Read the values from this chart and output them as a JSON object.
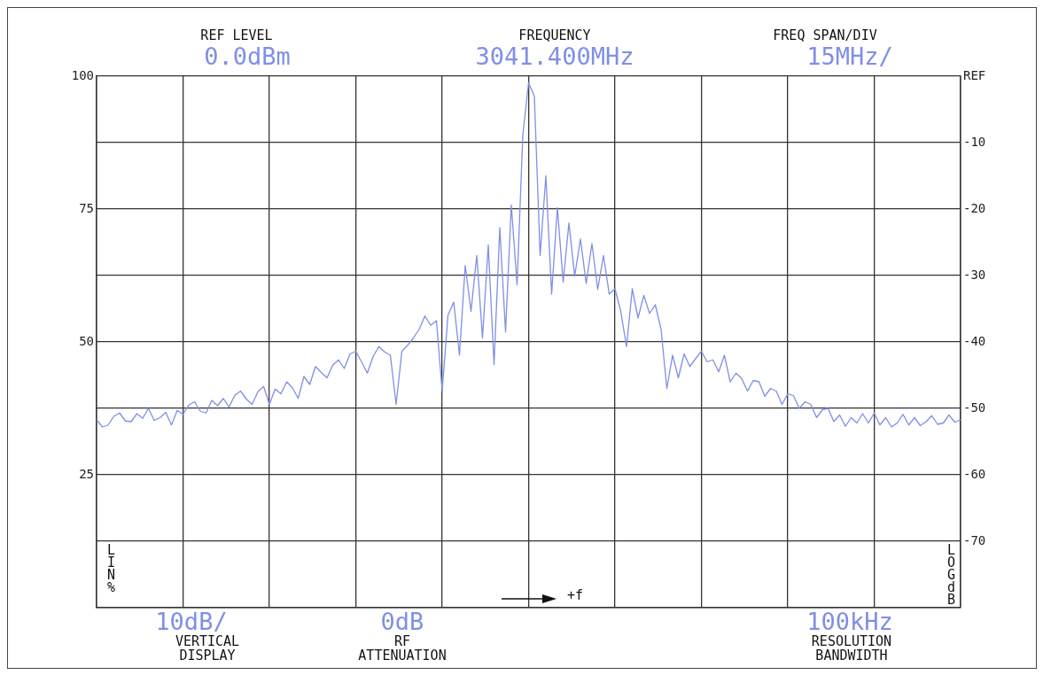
{
  "chart_data": {
    "type": "line",
    "annotations": [
      "REF LEVEL",
      "0.0dBm",
      "FREQUENCY",
      "3041.400MHz",
      "FREQ SPAN/DIV",
      "15MHz/",
      "10dB/",
      "VERTICAL\nDISPLAY",
      "0dB",
      "RF\nATTENUATION",
      "100kHz",
      "RESOLUTION\nBANDWIDTH",
      "LIN\n%",
      "LOG\ndB",
      "+f"
    ],
    "categories": [
      null,
      null,
      null,
      null,
      null,
      null,
      null,
      null,
      null,
      null,
      null,
      null,
      null,
      null,
      null,
      null,
      null,
      null,
      null,
      null,
      null,
      null,
      null,
      null,
      null,
      null,
      null,
      null,
      null,
      null,
      null,
      null,
      null,
      null,
      null,
      null,
      null,
      null,
      null,
      null,
      null,
      null,
      null,
      null,
      null,
      null,
      null,
      null,
      null,
      null,
      null,
      null,
      null,
      null,
      null,
      null,
      null,
      null,
      null,
      null,
      null,
      null,
      null,
      null,
      null,
      null,
      null,
      null,
      null,
      null,
      null,
      null,
      null,
      null,
      null,
      null,
      null,
      null,
      null,
      null,
      null,
      null,
      null,
      null,
      null,
      null,
      null,
      null,
      null,
      null,
      null,
      null,
      null,
      null,
      null,
      null,
      null,
      null,
      null,
      null,
      null,
      null,
      null,
      null,
      null,
      null,
      null,
      null,
      null,
      null,
      null,
      null,
      null,
      null,
      null,
      null,
      null,
      null,
      null,
      null,
      null,
      null,
      null,
      null,
      null,
      null,
      null,
      null,
      null,
      null,
      null,
      null,
      null,
      null,
      null,
      null,
      null,
      null,
      null,
      null,
      null,
      null,
      null,
      null,
      null,
      null,
      null,
      null,
      null,
      null,
      null
    ],
    "series": [
      {
        "color": "#7f8fe6",
        "values": [
          -51.7,
          -52.8,
          -52.5,
          -51.2,
          -50.7,
          -51.9,
          -52,
          -50.8,
          -51.5,
          -50,
          -51.8,
          -51.4,
          -50.6,
          -52.5,
          -50.3,
          -50.9,
          -49.5,
          -49,
          -50.4,
          -50.7,
          -48.8,
          -49.6,
          -48.5,
          -49.8,
          -48,
          -47.4,
          -48.6,
          -49.4,
          -47.5,
          -46.7,
          -49.4,
          -47.1,
          -47.8,
          -46,
          -46.9,
          -48.5,
          -45.2,
          -46.4,
          -43.7,
          -44.6,
          -45.4,
          -43.5,
          -42.7,
          -44,
          -41.8,
          -41.4,
          -43,
          -44.7,
          -42.2,
          -40.7,
          -41.5,
          -42,
          -49.4,
          -41.4,
          -40.5,
          -39.4,
          -38.1,
          -36.1,
          -37.5,
          -36.8,
          -47.4,
          -36,
          -34,
          -42,
          -28.5,
          -35.4,
          -27,
          -39.4,
          -25.4,
          -43.4,
          -22.8,
          -38.5,
          -19.4,
          -31.4,
          -8.8,
          -1,
          -3,
          -27,
          -15,
          -32.8,
          -19.8,
          -31,
          -22.1,
          -30.1,
          -24.5,
          -31.2,
          -25.2,
          -32.1,
          -27,
          -32.8,
          -32,
          -35.4,
          -40.7,
          -32,
          -36.4,
          -33,
          -35.7,
          -34.4,
          -38.1,
          -47,
          -42,
          -45.4,
          -41.8,
          -43.7,
          -42.5,
          -41.4,
          -43,
          -42.7,
          -44.5,
          -42,
          -46,
          -44.7,
          -45.5,
          -47.4,
          -45.8,
          -46,
          -48.2,
          -47,
          -47.4,
          -49.4,
          -47.8,
          -48.1,
          -50,
          -49,
          -49.4,
          -51.4,
          -50.2,
          -50,
          -52,
          -51,
          -52.7,
          -51.4,
          -52.2,
          -50.8,
          -52.2,
          -50.7,
          -52.5,
          -51.4,
          -52.8,
          -52.2,
          -50.9,
          -52.5,
          -51.4,
          -52.6,
          -52,
          -51.1,
          -52.4,
          -52.2,
          -51,
          -52.1,
          -51.7
        ]
      }
    ],
    "ylim": [
      -80,
      0
    ],
    "yticks": [
      {
        "value": 0,
        "label": "REF"
      },
      -10,
      -20,
      -30,
      -40,
      -50,
      -60,
      -70,
      {
        "value": -80,
        "label": null
      }
    ],
    "y2lim": [
      0,
      100
    ],
    "y2ticks": [
      25,
      50,
      75,
      100
    ],
    "tick_labels": "y",
    "grid": true,
    "legend": false,
    "marker": "none",
    "line_style": "solid"
  }
}
